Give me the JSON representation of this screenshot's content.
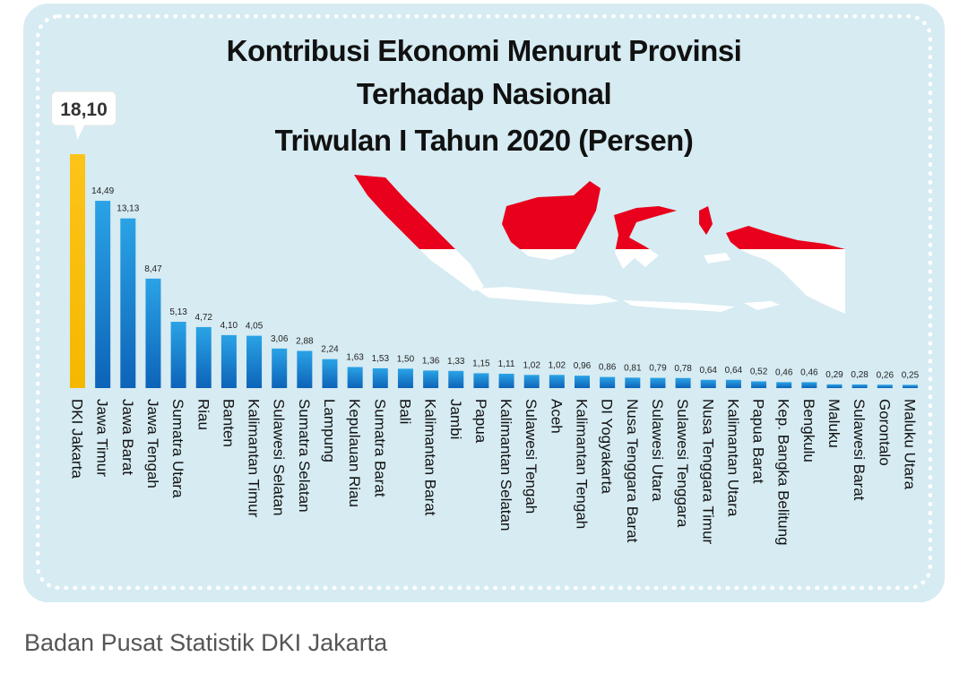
{
  "caption": "Badan Pusat Statistik DKI Jakarta",
  "colors": {
    "background": "#d6ebf2",
    "highlight_bar": "#f5b800",
    "bar_top": "#2aa3e6",
    "bar_bottom": "#0d63b8",
    "map_red": "#e8001c",
    "map_white": "#ffffff"
  },
  "map_icon": "indonesia-flag-map-icon",
  "chart_data": {
    "type": "bar",
    "title_lines": [
      "Kontribusi Ekonomi Menurut Provinsi",
      "Terhadap Nasional",
      "Triwulan I Tahun 2020 (Persen)"
    ],
    "categories": [
      "DKI Jakarta",
      "Jawa Timur",
      "Jawa Barat",
      "Jawa Tengah",
      "Sumatra Utara",
      "Riau",
      "Banten",
      "Kalimantan Timur",
      "Sulawesi Selatan",
      "Sumatra Selatan",
      "Lampung",
      "Kepulauan Riau",
      "Sumatra Barat",
      "Bali",
      "Kalimantan Barat",
      "Jambi",
      "Papua",
      "Kalimantan Selatan",
      "Sulawesi Tengah",
      "Aceh",
      "Kalimantan Tengah",
      "DI Yogyakarta",
      "Nusa Tenggara Barat",
      "Sulawesi Utara",
      "Sulawesi Tenggara",
      "Nusa Tenggara Timur",
      "Kalimantan Utara",
      "Papua Barat",
      "Kep. Bangka Belitung",
      "Bengkulu",
      "Maluku",
      "Sulawesi Barat",
      "Gorontalo",
      "Maluku Utara"
    ],
    "values": [
      18.1,
      14.49,
      13.13,
      8.47,
      5.13,
      4.72,
      4.1,
      4.05,
      3.06,
      2.88,
      2.24,
      1.63,
      1.53,
      1.5,
      1.36,
      1.33,
      1.15,
      1.11,
      1.02,
      1.02,
      0.96,
      0.86,
      0.81,
      0.79,
      0.78,
      0.64,
      0.64,
      0.52,
      0.46,
      0.46,
      0.29,
      0.28,
      0.26,
      0.25
    ],
    "value_labels": [
      "18,10",
      "14,49",
      "13,13",
      "8,47",
      "5,13",
      "4,72",
      "4,10",
      "4,05",
      "3,06",
      "2,88",
      "2,24",
      "1,63",
      "1,53",
      "1,50",
      "1,36",
      "1,33",
      "1,15",
      "1,11",
      "1,02",
      "1,02",
      "0,96",
      "0,86",
      "0,81",
      "0,79",
      "0,78",
      "0,64",
      "0,64",
      "0,52",
      "0,46",
      "0,46",
      "0,29",
      "0,28",
      "0,26",
      "0,25"
    ],
    "highlight_index": 0,
    "ylim": [
      0,
      18.1
    ],
    "grid": false,
    "legend": "none"
  }
}
